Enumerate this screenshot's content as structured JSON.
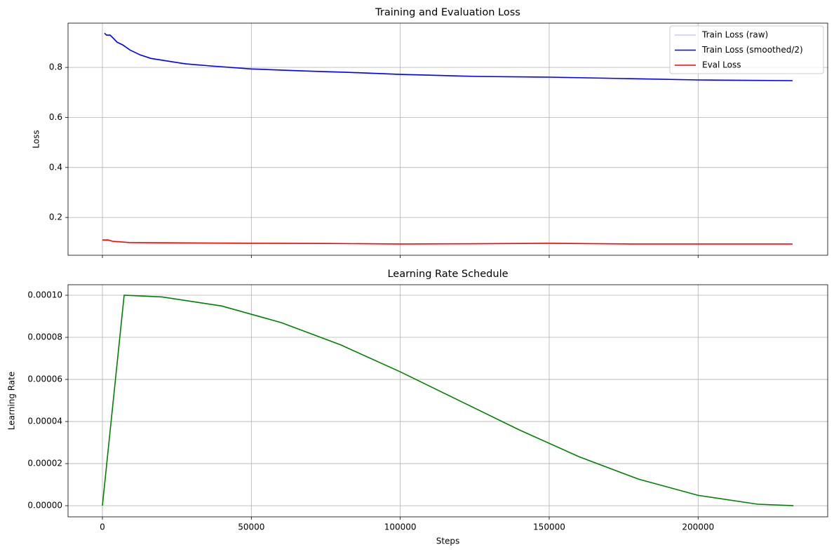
{
  "chart_data": [
    {
      "type": "line",
      "title": "Training and Evaluation Loss",
      "y_label": "Loss",
      "xlim": [
        -11540,
        243500
      ],
      "xticks": [
        0,
        50000,
        100000,
        150000,
        200000
      ],
      "x_tick_labels": false,
      "ylim": [
        0.049,
        0.977
      ],
      "yticks": [
        0.2,
        0.4,
        0.6,
        0.8
      ],
      "grid": true,
      "legend": "upper right",
      "series": [
        {
          "name": "Train Loss (raw)",
          "color": "#ccccff",
          "x": [
            700,
            1400,
            2600,
            3800,
            4900,
            6800,
            9200,
            12700,
            16300,
            22100,
            28000,
            36300,
            50000,
            66900,
            83400,
            100000,
            125800,
            150000,
            177600,
            200000,
            231700
          ],
          "values": [
            0.937,
            0.929,
            0.929,
            0.915,
            0.901,
            0.89,
            0.87,
            0.85,
            0.836,
            0.825,
            0.814,
            0.806,
            0.794,
            0.786,
            0.78,
            0.772,
            0.764,
            0.761,
            0.755,
            0.75,
            0.747
          ]
        },
        {
          "name": "Train Loss (smoothed/2)",
          "color": "#0000ff",
          "x": [
            700,
            1400,
            2600,
            3800,
            4900,
            6800,
            9200,
            12700,
            16300,
            22100,
            28000,
            36300,
            50000,
            66900,
            83400,
            100000,
            125800,
            150000,
            177600,
            200000,
            231700
          ],
          "values": [
            0.937,
            0.929,
            0.929,
            0.915,
            0.901,
            0.89,
            0.87,
            0.85,
            0.836,
            0.825,
            0.814,
            0.806,
            0.794,
            0.786,
            0.78,
            0.772,
            0.764,
            0.761,
            0.755,
            0.75,
            0.747
          ]
        },
        {
          "name": "Eval Loss",
          "color": "#ff0000",
          "x": [
            0,
            2000,
            3300,
            9000,
            20000,
            35000,
            50000,
            75000,
            100000,
            125000,
            150000,
            177600,
            200000,
            231700
          ],
          "values": [
            0.11,
            0.11,
            0.105,
            0.1,
            0.099,
            0.098,
            0.097,
            0.096,
            0.094,
            0.095,
            0.097,
            0.094,
            0.094,
            0.094
          ]
        }
      ]
    },
    {
      "type": "line",
      "title": "Learning Rate Schedule",
      "y_label": "Learning Rate",
      "x_label": "Steps",
      "xlim": [
        -11540,
        243500
      ],
      "xticks": [
        0,
        50000,
        100000,
        150000,
        200000
      ],
      "x_tick_labels": true,
      "ylim": [
        -5.3e-06,
        0.000105
      ],
      "yticks": [
        {
          "value": 0,
          "label": "0.00000"
        },
        {
          "value": 2e-05,
          "label": "0.00002"
        },
        {
          "value": 4e-05,
          "label": "0.00004"
        },
        {
          "value": 6e-05,
          "label": "0.00006"
        },
        {
          "value": 8e-05,
          "label": "0.00008"
        },
        {
          "value": 0.0001,
          "label": "0.00010"
        }
      ],
      "grid": true,
      "color": "#008000",
      "x": [
        0,
        7300,
        20000,
        40000,
        60000,
        80000,
        100000,
        120000,
        140000,
        160000,
        180000,
        200000,
        220000,
        232000
      ],
      "values": [
        0,
        0.0001,
        9.92e-05,
        9.49e-05,
        8.7e-05,
        7.64e-05,
        6.36e-05,
        4.98e-05,
        3.6e-05,
        2.33e-05,
        1.26e-05,
        4.9e-06,
        7e-07,
        0
      ]
    }
  ]
}
